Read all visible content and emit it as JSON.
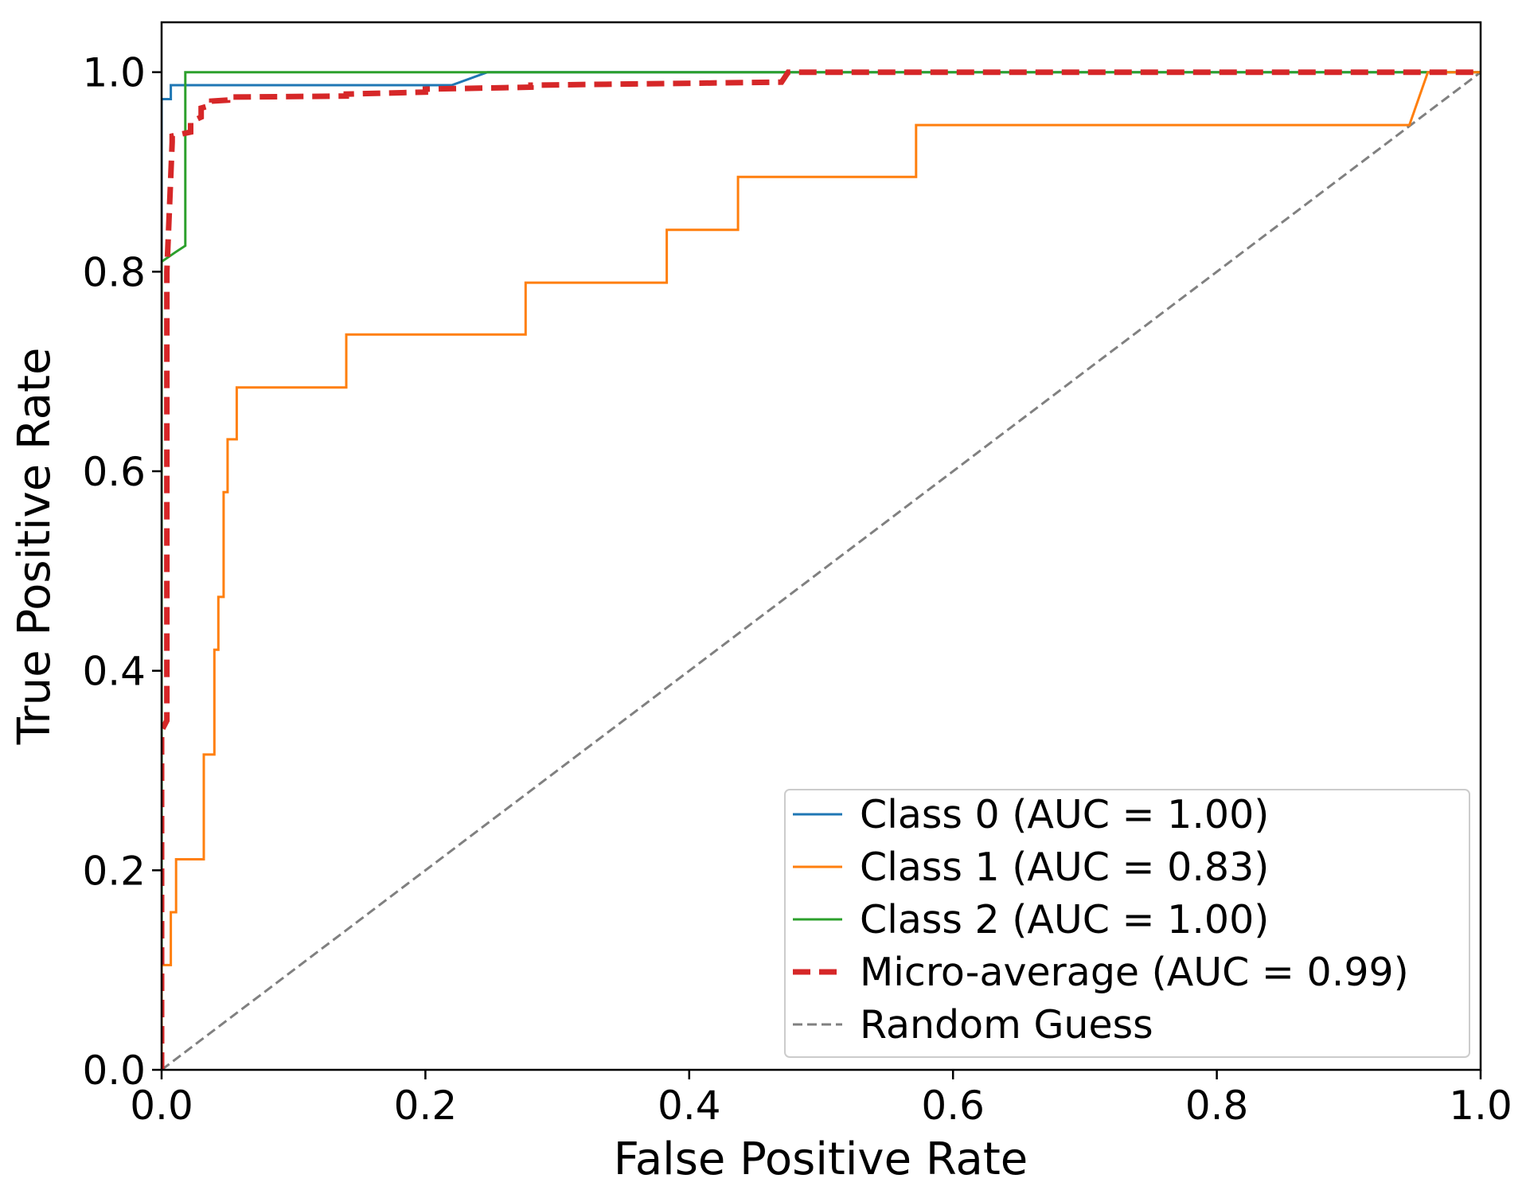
{
  "chart_data": {
    "type": "line",
    "title": "",
    "xlabel": "False Positive Rate",
    "ylabel": "True Positive Rate",
    "xlim": [
      0.0,
      1.0
    ],
    "ylim": [
      0.0,
      1.05
    ],
    "grid": false,
    "legend_position": "lower-right",
    "xticks": [
      "0.0",
      "0.2",
      "0.4",
      "0.6",
      "0.8",
      "1.0"
    ],
    "yticks": [
      "0.0",
      "0.2",
      "0.4",
      "0.6",
      "0.8",
      "1.0"
    ],
    "series": [
      {
        "name": "Class 0 (AUC = 1.00)",
        "color": "#1f77b4",
        "style": "solid",
        "x": [
          0.0,
          0.0,
          0.007,
          0.007,
          0.22,
          0.247,
          1.0
        ],
        "y": [
          0.0,
          0.973,
          0.973,
          0.987,
          0.987,
          1.0,
          1.0
        ]
      },
      {
        "name": "Class 1 (AUC = 0.83)",
        "color": "#ff7f0e",
        "style": "solid",
        "x": [
          0.0,
          0.0,
          0.007,
          0.007,
          0.011,
          0.011,
          0.032,
          0.032,
          0.04,
          0.04,
          0.043,
          0.043,
          0.047,
          0.047,
          0.05,
          0.05,
          0.057,
          0.057,
          0.14,
          0.14,
          0.276,
          0.276,
          0.383,
          0.383,
          0.437,
          0.437,
          0.572,
          0.572,
          0.946,
          0.96,
          1.0
        ],
        "y": [
          0.0,
          0.105,
          0.105,
          0.158,
          0.158,
          0.211,
          0.211,
          0.316,
          0.316,
          0.421,
          0.421,
          0.474,
          0.474,
          0.579,
          0.579,
          0.632,
          0.632,
          0.684,
          0.684,
          0.737,
          0.737,
          0.789,
          0.789,
          0.842,
          0.842,
          0.895,
          0.895,
          0.947,
          0.947,
          1.0,
          1.0
        ]
      },
      {
        "name": "Class 2 (AUC = 1.00)",
        "color": "#2ca02c",
        "style": "solid",
        "x": [
          0.0,
          0.0,
          0.011,
          0.018,
          0.018,
          1.0
        ],
        "y": [
          0.0,
          0.81,
          0.82,
          0.826,
          1.0,
          1.0
        ]
      },
      {
        "name": "Micro-average (AUC = 0.99)",
        "color": "#d62728",
        "style": "dashed",
        "x": [
          0.0,
          0.0,
          0.004,
          0.004,
          0.008,
          0.008,
          0.022,
          0.022,
          0.03,
          0.03,
          0.038,
          0.038,
          0.05,
          0.05,
          0.14,
          0.14,
          0.2,
          0.2,
          0.28,
          0.28,
          0.47,
          0.475,
          1.0
        ],
        "y": [
          0.0,
          0.34,
          0.35,
          0.8,
          0.93,
          0.936,
          0.94,
          0.95,
          0.955,
          0.964,
          0.967,
          0.971,
          0.972,
          0.975,
          0.976,
          0.978,
          0.98,
          0.983,
          0.985,
          0.987,
          0.99,
          1.0,
          1.0
        ]
      },
      {
        "name": "Random Guess",
        "color": "#808080",
        "style": "dashed-thin",
        "x": [
          0.0,
          1.0
        ],
        "y": [
          0.0,
          1.0
        ]
      }
    ]
  }
}
